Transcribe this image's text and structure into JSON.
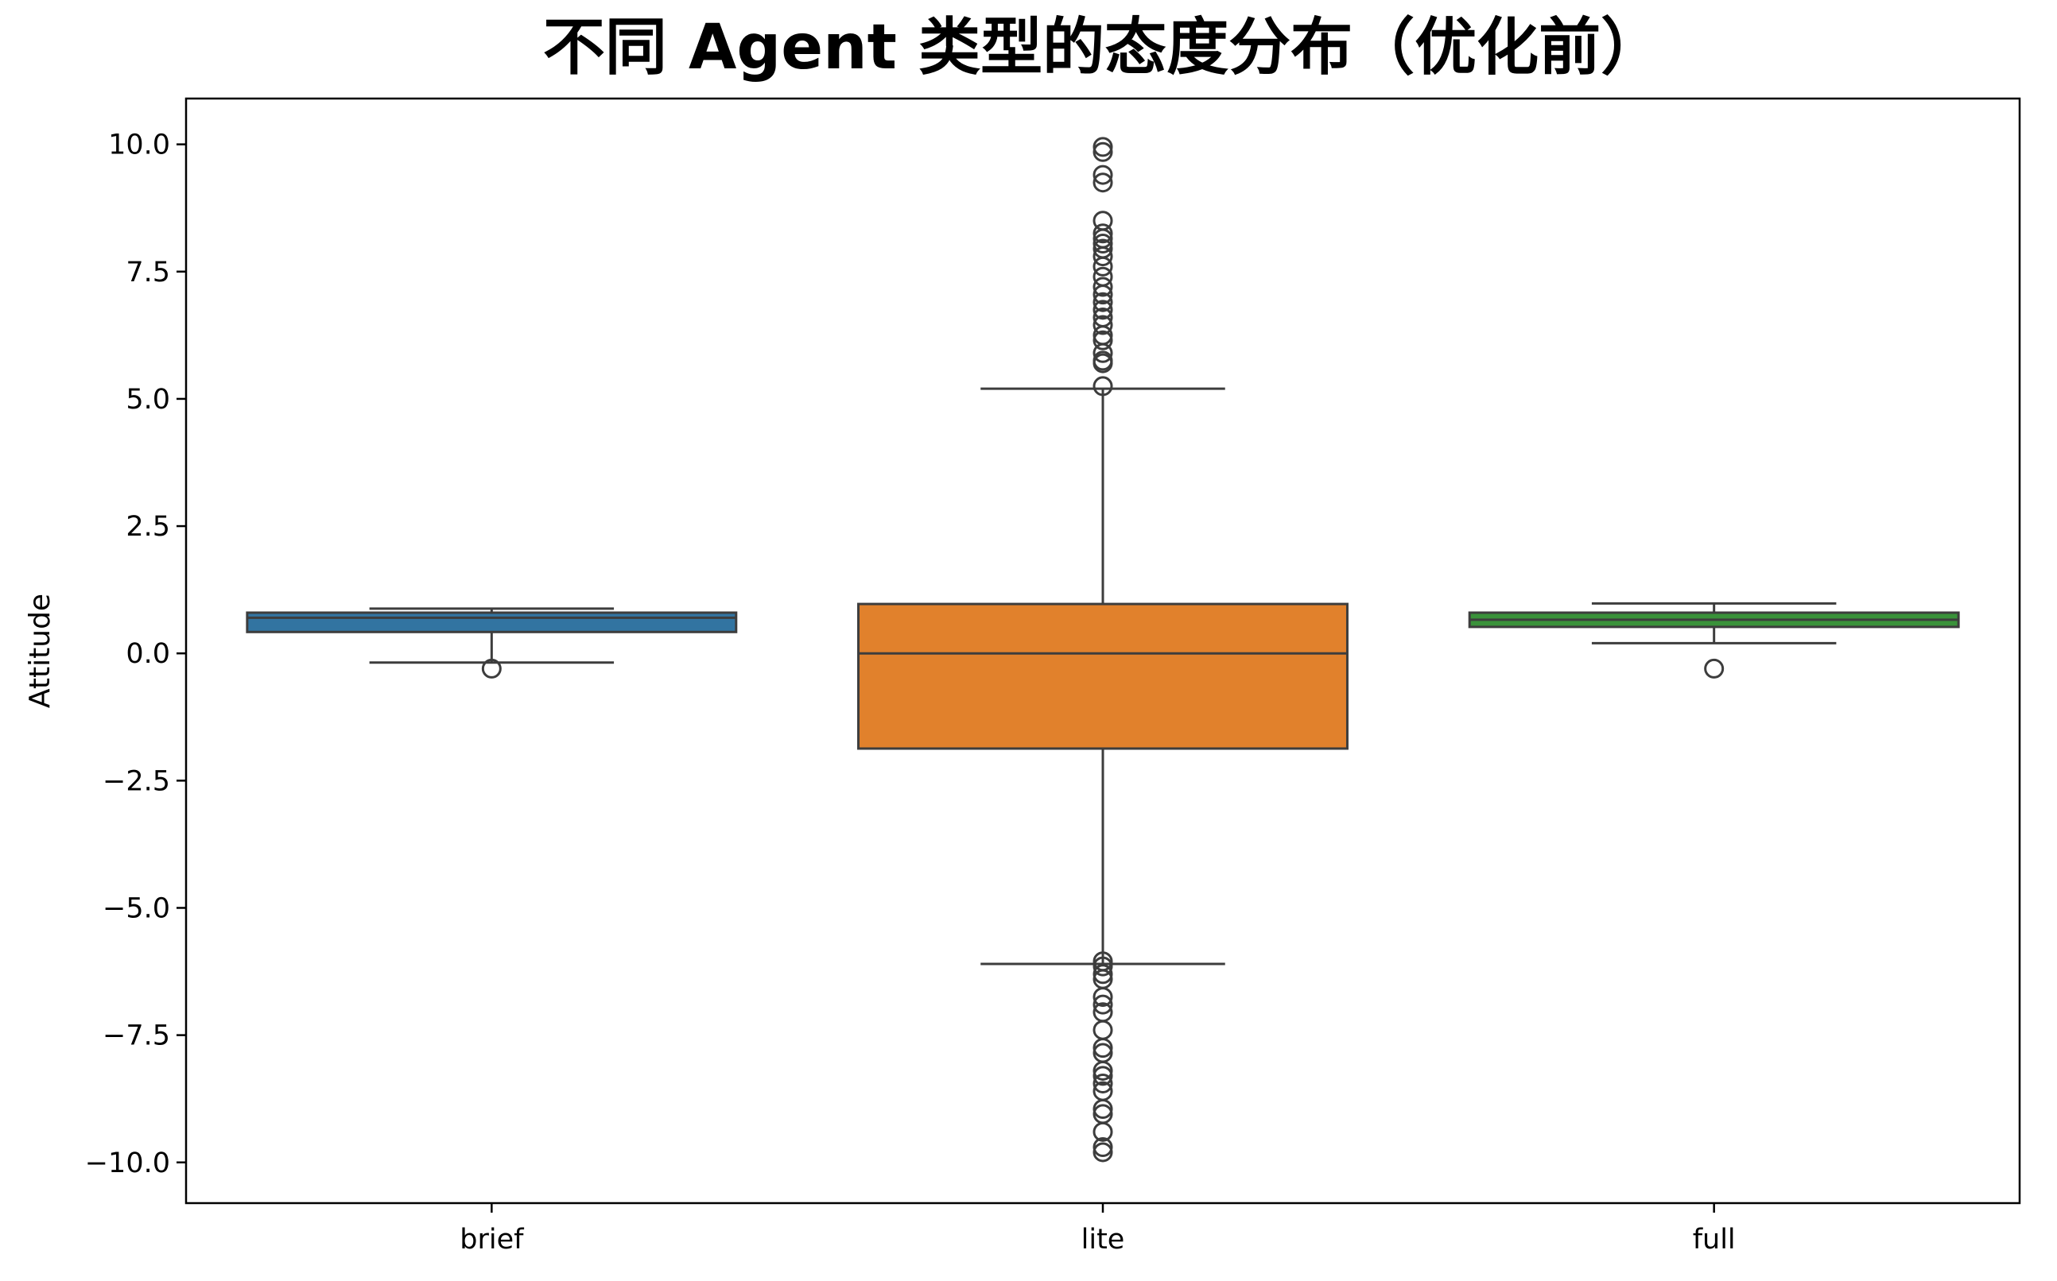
{
  "chart_data": {
    "type": "box",
    "title": "不同 Agent 类型的态度分布（优化前）",
    "xlabel": "",
    "ylabel": "Attitude",
    "ylim": [
      -10.8,
      10.9
    ],
    "yticks": [
      10.0,
      7.5,
      5.0,
      2.5,
      0.0,
      -2.5,
      -5.0,
      -7.5,
      -10.0
    ],
    "ytick_labels": [
      "10.0",
      "7.5",
      "5.0",
      "2.5",
      "0.0",
      "−2.5",
      "−5.0",
      "−7.5",
      "−10.0"
    ],
    "grid": false,
    "categories": [
      "brief",
      "lite",
      "full"
    ],
    "boxes": [
      {
        "category": "brief",
        "color": "#3274a1",
        "whisker_low": -0.18,
        "q1": 0.42,
        "median": 0.7,
        "q3": 0.8,
        "whisker_high": 0.88,
        "outliers": [
          -0.3
        ]
      },
      {
        "category": "lite",
        "color": "#e1812c",
        "whisker_low": -6.1,
        "q1": -1.87,
        "median": 0.0,
        "q3": 0.97,
        "whisker_high": 5.2,
        "outliers": [
          9.95,
          9.85,
          9.4,
          9.25,
          8.5,
          8.25,
          8.15,
          8.05,
          7.95,
          7.8,
          7.6,
          7.4,
          7.2,
          7.05,
          6.9,
          6.75,
          6.6,
          6.45,
          6.25,
          6.15,
          5.9,
          5.75,
          5.7,
          5.25,
          -6.05,
          -6.15,
          -6.3,
          -6.4,
          -6.75,
          -6.9,
          -7.05,
          -7.4,
          -7.75,
          -7.85,
          -8.2,
          -8.3,
          -8.45,
          -8.6,
          -8.95,
          -9.05,
          -9.4,
          -9.7,
          -9.8
        ]
      },
      {
        "category": "full",
        "color": "#3a923a",
        "whisker_low": 0.2,
        "q1": 0.52,
        "median": 0.66,
        "q3": 0.8,
        "whisker_high": 0.98,
        "outliers": [
          -0.3
        ]
      }
    ]
  }
}
